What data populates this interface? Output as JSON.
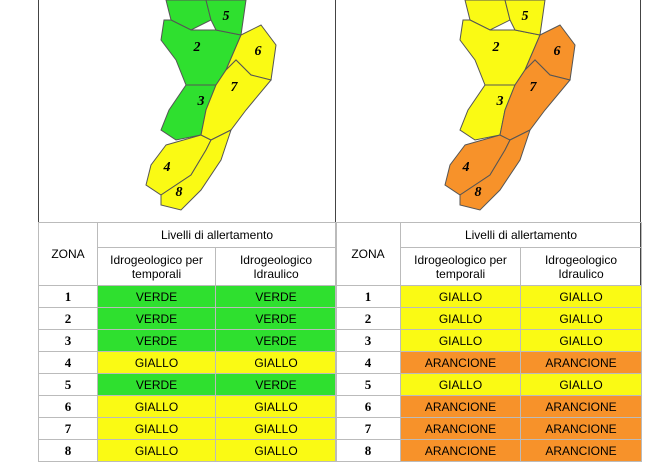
{
  "panels": [
    {
      "table": {
        "zona_header": "ZONA",
        "group_header": "Livelli di allertamento",
        "col_headers": [
          "Idrogeologico per temporali",
          "Idrogeologico Idraulico"
        ],
        "rows": [
          [
            "1",
            "VERDE",
            "VERDE"
          ],
          [
            "2",
            "VERDE",
            "VERDE"
          ],
          [
            "3",
            "VERDE",
            "VERDE"
          ],
          [
            "4",
            "GIALLO",
            "GIALLO"
          ],
          [
            "5",
            "VERDE",
            "VERDE"
          ],
          [
            "6",
            "GIALLO",
            "GIALLO"
          ],
          [
            "7",
            "GIALLO",
            "GIALLO"
          ],
          [
            "8",
            "GIALLO",
            "GIALLO"
          ]
        ]
      }
    },
    {
      "table": {
        "zona_header": "ZONA",
        "group_header": "Livelli di allertamento",
        "col_headers": [
          "Idrogeologico per temporali",
          "Idrogeologico Idraulico"
        ],
        "rows": [
          [
            "1",
            "GIALLO",
            "GIALLO"
          ],
          [
            "2",
            "GIALLO",
            "GIALLO"
          ],
          [
            "3",
            "GIALLO",
            "GIALLO"
          ],
          [
            "4",
            "ARANCIONE",
            "ARANCIONE"
          ],
          [
            "5",
            "GIALLO",
            "GIALLO"
          ],
          [
            "6",
            "ARANCIONE",
            "ARANCIONE"
          ],
          [
            "7",
            "ARANCIONE",
            "ARANCIONE"
          ],
          [
            "8",
            "ARANCIONE",
            "ARANCIONE"
          ]
        ]
      }
    }
  ],
  "level_colors": {
    "VERDE": "#2fe02f",
    "GIALLO": "#fafa14",
    "ARANCIONE": "#f7922a"
  }
}
